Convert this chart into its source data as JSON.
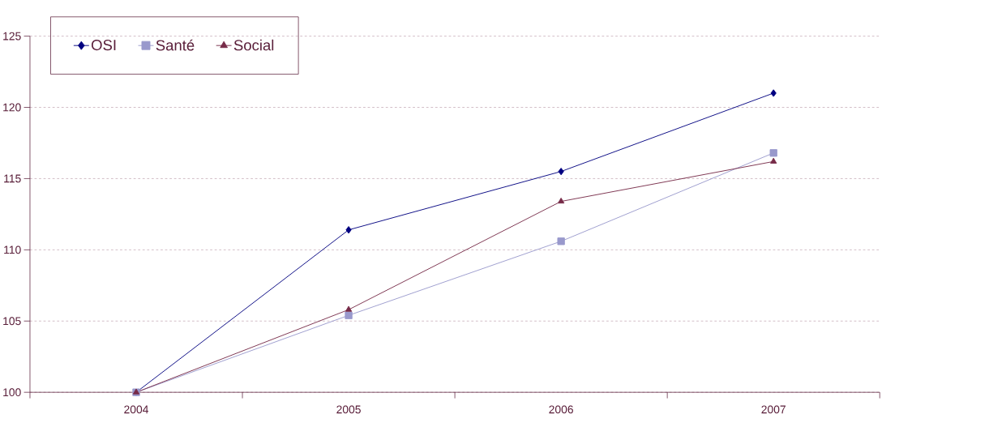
{
  "chart_data": {
    "type": "line",
    "categories": [
      "2004",
      "2005",
      "2006",
      "2007"
    ],
    "series": [
      {
        "name": "OSI",
        "color": "#000080",
        "marker": "diamond",
        "values": [
          100,
          111.4,
          115.5,
          121.0
        ]
      },
      {
        "name": "Santé",
        "color": "#9999cc",
        "marker": "square",
        "values": [
          100,
          105.4,
          110.6,
          116.8
        ]
      },
      {
        "name": "Social",
        "color": "#772b48",
        "marker": "triangle",
        "values": [
          100,
          105.8,
          113.4,
          116.2
        ]
      }
    ],
    "ylim": [
      100,
      125
    ],
    "yticks": [
      100,
      105,
      110,
      115,
      120,
      125
    ],
    "grid": "y",
    "legend": "top left",
    "line_style": "solid"
  }
}
